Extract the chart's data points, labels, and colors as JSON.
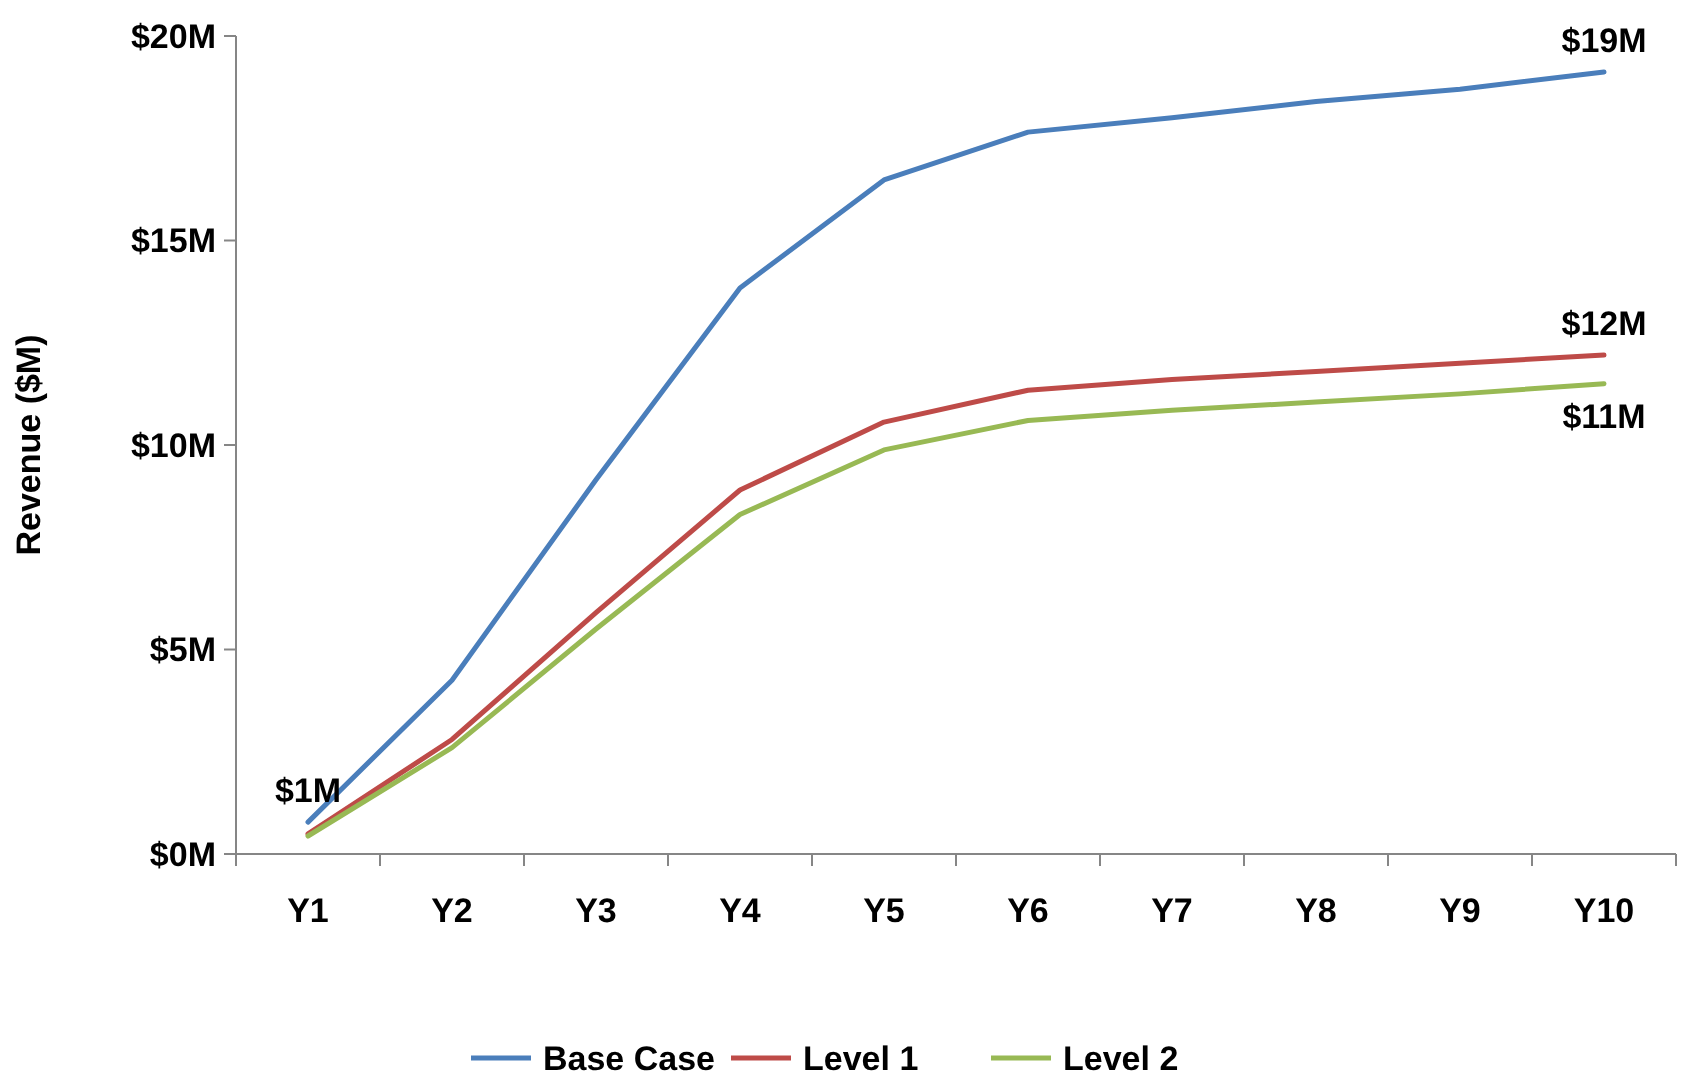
{
  "chart_data": {
    "type": "line",
    "ylabel": "Revenue ($M)",
    "categories": [
      "Y1",
      "Y2",
      "Y3",
      "Y4",
      "Y5",
      "Y6",
      "Y7",
      "Y8",
      "Y9",
      "Y10"
    ],
    "series": [
      {
        "name": "Base Case",
        "color": "#4a7ebb",
        "values": [
          0.78,
          4.25,
          9.15,
          13.84,
          16.48,
          17.65,
          18.0,
          18.4,
          18.7,
          19.12
        ],
        "value_labels": [
          "$1M",
          null,
          null,
          null,
          null,
          null,
          null,
          null,
          null,
          "$19M"
        ]
      },
      {
        "name": "Level 1",
        "color": "#be4b48",
        "values": [
          0.49,
          2.8,
          5.9,
          8.9,
          10.56,
          11.34,
          11.6,
          11.8,
          12.0,
          12.2
        ],
        "value_labels": [
          null,
          null,
          null,
          null,
          null,
          null,
          null,
          null,
          null,
          "$12M"
        ]
      },
      {
        "name": "Level 2",
        "color": "#98b954",
        "values": [
          0.44,
          2.6,
          5.5,
          8.3,
          9.88,
          10.6,
          10.85,
          11.05,
          11.25,
          11.5
        ],
        "value_labels": [
          null,
          null,
          null,
          null,
          null,
          null,
          null,
          null,
          null,
          "$11M"
        ]
      }
    ],
    "ylim": [
      0,
      20
    ],
    "yticks": [
      {
        "value": 0,
        "label": "$0M"
      },
      {
        "value": 5,
        "label": "$5M"
      },
      {
        "value": 10,
        "label": "$10M"
      },
      {
        "value": 15,
        "label": "$15M"
      },
      {
        "value": 20,
        "label": "$20M"
      }
    ],
    "grid": false,
    "legend": "bottom",
    "marker": "none",
    "line_style": "solid"
  }
}
